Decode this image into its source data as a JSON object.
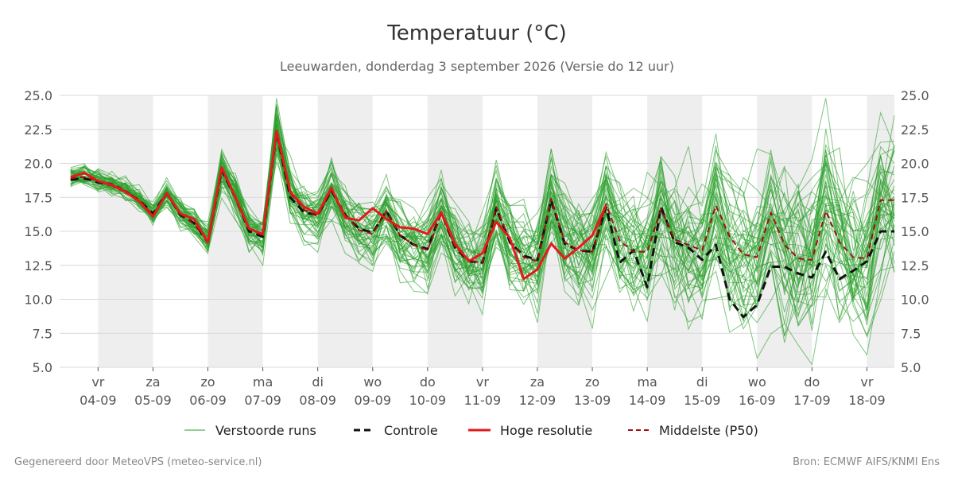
{
  "chart_data": {
    "type": "line",
    "title": "Temperatuur (°C)",
    "subtitle": "Leeuwarden, donderdag  3 september 2026 (Versie do 12 uur)",
    "ylim": [
      5.0,
      25.0
    ],
    "yticks": [
      "25.0",
      "22.5",
      "20.0",
      "17.5",
      "15.0",
      "12.5",
      "10.0",
      "7.5",
      "5.0"
    ],
    "x_start_day": 3.3,
    "x_end_day": 18.5,
    "x_ticks": [
      {
        "day": 4,
        "dow": "vr",
        "date": "04-09"
      },
      {
        "day": 5,
        "dow": "za",
        "date": "05-09"
      },
      {
        "day": 6,
        "dow": "zo",
        "date": "06-09"
      },
      {
        "day": 7,
        "dow": "ma",
        "date": "07-09"
      },
      {
        "day": 8,
        "dow": "di",
        "date": "08-09"
      },
      {
        "day": 9,
        "dow": "wo",
        "date": "09-09"
      },
      {
        "day": 10,
        "dow": "do",
        "date": "10-09"
      },
      {
        "day": 11,
        "dow": "vr",
        "date": "11-09"
      },
      {
        "day": 12,
        "dow": "za",
        "date": "12-09"
      },
      {
        "day": 13,
        "dow": "zo",
        "date": "13-09"
      },
      {
        "day": 14,
        "dow": "ma",
        "date": "14-09"
      },
      {
        "day": 15,
        "dow": "di",
        "date": "15-09"
      },
      {
        "day": 16,
        "dow": "wo",
        "date": "16-09"
      },
      {
        "day": 17,
        "dow": "do",
        "date": "17-09"
      },
      {
        "day": 18,
        "dow": "vr",
        "date": "18-09"
      }
    ],
    "shaded_days": [
      [
        4,
        5
      ],
      [
        6,
        7
      ],
      [
        8,
        9
      ],
      [
        10,
        11
      ],
      [
        12,
        13
      ],
      [
        14,
        15
      ],
      [
        16,
        17
      ],
      [
        18,
        18.5
      ]
    ],
    "x": [
      3.5,
      3.75,
      4.0,
      4.25,
      4.5,
      4.75,
      5.0,
      5.25,
      5.5,
      5.75,
      6.0,
      6.25,
      6.5,
      6.75,
      7.0,
      7.25,
      7.5,
      7.75,
      8.0,
      8.25,
      8.5,
      8.75,
      9.0,
      9.25,
      9.5,
      9.75,
      10.0,
      10.25,
      10.5,
      10.75,
      11.0,
      11.25,
      11.5,
      11.75,
      12.0,
      12.25,
      12.5,
      12.75,
      13.0,
      13.25,
      13.5,
      13.75,
      14.0,
      14.25,
      14.5,
      14.75,
      15.0,
      15.25,
      15.5,
      15.75,
      16.0,
      16.25,
      16.5,
      16.75,
      17.0,
      17.25,
      17.5,
      17.75,
      18.0,
      18.25,
      18.5
    ],
    "series": [
      {
        "name": "Controle",
        "color": "#111111",
        "dash": "10,6",
        "width": 3,
        "values": [
          18.8,
          18.9,
          18.6,
          18.4,
          17.9,
          17.3,
          16.3,
          17.8,
          16.2,
          15.6,
          14.2,
          19.5,
          17.5,
          15.0,
          14.6,
          22.3,
          17.5,
          16.4,
          16.2,
          18.0,
          16.2,
          15.2,
          14.9,
          16.5,
          14.7,
          14.0,
          13.7,
          16.4,
          13.8,
          12.8,
          12.7,
          16.7,
          14.2,
          13.2,
          12.9,
          17.3,
          14.1,
          13.6,
          13.5,
          16.8,
          12.7,
          13.6,
          10.9,
          16.8,
          14.2,
          13.8,
          12.9,
          14.0,
          10.0,
          8.7,
          9.6,
          12.4,
          12.4,
          11.9,
          11.6,
          13.5,
          11.5,
          12.1,
          12.8,
          15.0,
          15.0
        ]
      },
      {
        "name": "Hoge resolutie",
        "color": "#e31a1c",
        "dash": "",
        "width": 3,
        "values": [
          19.0,
          19.3,
          18.7,
          18.4,
          17.9,
          17.2,
          16.1,
          17.8,
          16.3,
          15.9,
          14.2,
          19.7,
          17.5,
          15.2,
          14.8,
          22.4,
          17.9,
          16.8,
          16.3,
          18.2,
          16.0,
          15.8,
          16.7,
          15.9,
          15.3,
          15.2,
          14.8,
          16.4,
          14.1,
          12.8,
          13.4,
          15.7,
          14.5,
          11.5,
          12.2,
          14.1,
          13.0,
          13.8,
          14.7,
          16.9,
          null,
          null,
          null,
          null,
          null,
          null,
          null,
          null,
          null,
          null,
          null,
          null,
          null,
          null,
          null,
          null,
          null,
          null,
          null,
          null,
          null
        ]
      },
      {
        "name": "Middelste (P50)",
        "color": "#a01010",
        "dash": "7,5",
        "width": 2,
        "values": [
          18.9,
          19.0,
          18.7,
          18.5,
          18.0,
          17.3,
          16.2,
          17.7,
          16.3,
          15.5,
          14.4,
          19.5,
          17.6,
          15.2,
          14.7,
          22.2,
          17.8,
          16.6,
          16.1,
          18.1,
          16.2,
          15.1,
          14.8,
          16.5,
          14.7,
          14.0,
          13.6,
          16.3,
          13.9,
          12.8,
          12.7,
          16.8,
          14.3,
          13.1,
          12.8,
          17.4,
          14.2,
          13.6,
          13.5,
          17.0,
          14.3,
          13.5,
          13.5,
          16.6,
          14.4,
          14.0,
          13.6,
          16.9,
          14.6,
          13.3,
          13.1,
          16.4,
          14.0,
          13.0,
          12.9,
          16.5,
          14.2,
          13.1,
          13.0,
          17.3,
          17.3
        ]
      }
    ],
    "ensemble": {
      "name": "Verstoorde runs",
      "color": "#2ca02c",
      "member_count": 50
    }
  },
  "legend": [
    {
      "key": "ensemble",
      "label": "Verstoorde runs"
    },
    {
      "key": "control",
      "label": "Controle"
    },
    {
      "key": "highres",
      "label": "Hoge resolutie"
    },
    {
      "key": "p50",
      "label": "Middelste (P50)"
    }
  ],
  "footer": {
    "left": "Gegenereerd door MeteoVPS (meteo-service.nl)",
    "right": "Bron: ECMWF AIFS/KNMI Ens"
  }
}
